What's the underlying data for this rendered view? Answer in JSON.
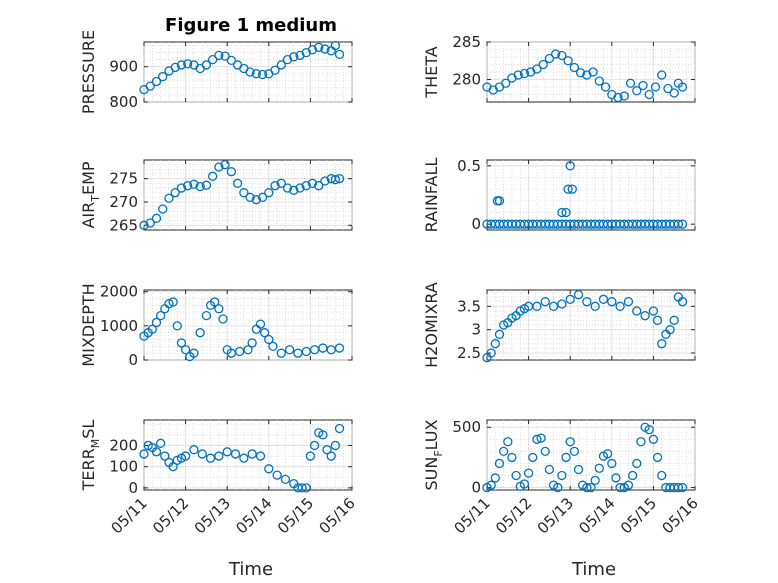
{
  "title": "Figure 1 medium",
  "xlabel": "Time",
  "marker_color": "#0072bd",
  "x_tick_labels": [
    "05/11",
    "05/12",
    "05/13",
    "05/14",
    "05/15",
    "05/16"
  ],
  "chart_data": [
    {
      "type": "scatter",
      "ylabel": "PRESSURE",
      "xlim": [
        0,
        5
      ],
      "ylim": [
        800,
        970
      ],
      "yticks": [
        800,
        900
      ],
      "yminor": [
        820,
        840,
        860,
        880,
        920,
        940,
        960
      ],
      "x": [
        0,
        0.15,
        0.3,
        0.45,
        0.6,
        0.75,
        0.9,
        1.05,
        1.2,
        1.35,
        1.5,
        1.65,
        1.8,
        1.95,
        2.1,
        2.25,
        2.4,
        2.55,
        2.7,
        2.85,
        3.0,
        3.15,
        3.3,
        3.45,
        3.6,
        3.75,
        3.9,
        4.05,
        4.2,
        4.35,
        4.5,
        4.6,
        4.7
      ],
      "y": [
        835,
        845,
        858,
        872,
        888,
        898,
        905,
        908,
        905,
        895,
        905,
        920,
        932,
        930,
        918,
        905,
        895,
        885,
        880,
        878,
        880,
        890,
        905,
        920,
        928,
        932,
        940,
        948,
        955,
        950,
        945,
        960,
        935
      ]
    },
    {
      "type": "scatter",
      "ylabel": "THETA",
      "xlim": [
        0,
        5
      ],
      "ylim": [
        277,
        285
      ],
      "yticks": [
        280,
        285
      ],
      "yminor": [
        278,
        279,
        281,
        282,
        283,
        284
      ],
      "x": [
        0,
        0.15,
        0.3,
        0.45,
        0.6,
        0.75,
        0.9,
        1.05,
        1.2,
        1.35,
        1.5,
        1.65,
        1.8,
        1.95,
        2.1,
        2.25,
        2.4,
        2.55,
        2.7,
        2.85,
        3.0,
        3.15,
        3.3,
        3.45,
        3.6,
        3.75,
        3.9,
        4.05,
        4.2,
        4.35,
        4.5,
        4.6,
        4.7
      ],
      "y": [
        279,
        278.6,
        279,
        279.5,
        280.2,
        280.6,
        280.8,
        281,
        281.4,
        282,
        282.8,
        283.4,
        283.2,
        282.5,
        281.6,
        280.9,
        280.6,
        281,
        279.8,
        279,
        278,
        277.6,
        277.8,
        279.5,
        278.5,
        279.2,
        278,
        279,
        280.6,
        278.8,
        278.2,
        279.5,
        279
      ]
    },
    {
      "type": "scatter",
      "ylabel": "AIR_TEMP",
      "xlim": [
        0,
        5
      ],
      "ylim": [
        264,
        279
      ],
      "yticks": [
        265,
        270,
        275
      ],
      "yminor": [
        266,
        267,
        268,
        269,
        271,
        272,
        273,
        274,
        276,
        277,
        278
      ],
      "x": [
        0,
        0.15,
        0.3,
        0.45,
        0.6,
        0.75,
        0.9,
        1.05,
        1.2,
        1.35,
        1.5,
        1.65,
        1.8,
        1.95,
        2.1,
        2.25,
        2.4,
        2.55,
        2.7,
        2.85,
        3.0,
        3.15,
        3.3,
        3.45,
        3.6,
        3.75,
        3.9,
        4.05,
        4.2,
        4.35,
        4.5,
        4.6,
        4.7
      ],
      "y": [
        265,
        265.5,
        266.5,
        268.5,
        270.8,
        272,
        273,
        273.5,
        273.8,
        273.3,
        273.6,
        275.5,
        277.5,
        278,
        276.5,
        274,
        272,
        271,
        270.5,
        271,
        272,
        273.5,
        274,
        273,
        272.5,
        273,
        273.5,
        274,
        273.5,
        274.5,
        275,
        274.8,
        275
      ]
    },
    {
      "type": "scatter",
      "ylabel": "RAINFALL",
      "xlim": [
        0,
        5
      ],
      "ylim": [
        -0.05,
        0.55
      ],
      "yticks": [
        0,
        0.5
      ],
      "yminor": [
        0.1,
        0.2,
        0.3,
        0.4
      ],
      "x": [
        0,
        0.1,
        0.2,
        0.3,
        0.4,
        0.5,
        0.6,
        0.7,
        0.8,
        0.9,
        1.0,
        1.1,
        1.2,
        1.3,
        1.4,
        1.5,
        1.6,
        1.7,
        1.8,
        1.9,
        2.0,
        2.1,
        2.2,
        2.3,
        2.4,
        2.5,
        2.6,
        2.7,
        2.8,
        2.9,
        3.0,
        3.1,
        3.2,
        3.3,
        3.4,
        3.5,
        3.6,
        3.7,
        3.8,
        3.9,
        4.0,
        4.1,
        4.2,
        4.3,
        4.4,
        4.5,
        4.6,
        4.7,
        0.25,
        0.3,
        1.8,
        1.9,
        1.95,
        2.0,
        2.05
      ],
      "y": [
        0,
        0,
        0,
        0,
        0,
        0,
        0,
        0,
        0,
        0,
        0,
        0,
        0,
        0,
        0,
        0,
        0,
        0,
        0,
        0,
        0,
        0,
        0,
        0,
        0,
        0,
        0,
        0,
        0,
        0,
        0,
        0,
        0,
        0,
        0,
        0,
        0,
        0,
        0,
        0,
        0,
        0,
        0,
        0,
        0,
        0,
        0,
        0,
        0.2,
        0.2,
        0.1,
        0.1,
        0.3,
        0.5,
        0.3
      ]
    },
    {
      "type": "scatter",
      "ylabel": "MIXDEPTH",
      "xlim": [
        0,
        5
      ],
      "ylim": [
        0,
        2050
      ],
      "yticks": [
        0,
        1000,
        2000
      ],
      "yminor": [
        200,
        400,
        600,
        800,
        1200,
        1400,
        1600,
        1800
      ],
      "x": [
        0,
        0.1,
        0.2,
        0.3,
        0.4,
        0.5,
        0.6,
        0.7,
        0.8,
        0.9,
        1.0,
        1.1,
        1.2,
        1.35,
        1.5,
        1.6,
        1.7,
        1.8,
        1.9,
        2.0,
        2.1,
        2.3,
        2.5,
        2.6,
        2.7,
        2.8,
        2.9,
        3.0,
        3.1,
        3.3,
        3.5,
        3.7,
        3.9,
        4.1,
        4.3,
        4.5,
        4.7
      ],
      "y": [
        700,
        800,
        900,
        1100,
        1300,
        1500,
        1650,
        1700,
        1000,
        500,
        300,
        100,
        200,
        800,
        1300,
        1600,
        1700,
        1500,
        1200,
        300,
        200,
        250,
        300,
        500,
        900,
        1050,
        800,
        600,
        400,
        200,
        300,
        200,
        250,
        300,
        350,
        300,
        350
      ]
    },
    {
      "type": "scatter",
      "ylabel": "H2OMIXRA",
      "xlim": [
        0,
        5
      ],
      "ylim": [
        2.35,
        3.85
      ],
      "yticks": [
        2.5,
        3,
        3.5
      ],
      "yminor": [
        2.6,
        2.7,
        2.8,
        2.9,
        3.1,
        3.2,
        3.3,
        3.4,
        3.6,
        3.7,
        3.8
      ],
      "x": [
        0,
        0.1,
        0.2,
        0.3,
        0.4,
        0.5,
        0.6,
        0.7,
        0.8,
        0.9,
        1.0,
        1.2,
        1.4,
        1.6,
        1.8,
        2.0,
        2.2,
        2.4,
        2.6,
        2.8,
        3.0,
        3.2,
        3.4,
        3.6,
        3.8,
        4.0,
        4.1,
        4.2,
        4.3,
        4.4,
        4.5,
        4.6,
        4.7
      ],
      "y": [
        2.4,
        2.5,
        2.7,
        2.9,
        3.1,
        3.15,
        3.25,
        3.3,
        3.4,
        3.45,
        3.5,
        3.5,
        3.6,
        3.5,
        3.55,
        3.65,
        3.75,
        3.6,
        3.5,
        3.65,
        3.6,
        3.5,
        3.6,
        3.4,
        3.3,
        3.4,
        3.2,
        2.7,
        2.9,
        3.0,
        3.2,
        3.7,
        3.6
      ]
    },
    {
      "type": "scatter",
      "ylabel": "TERR_MSL",
      "xlim": [
        0,
        5
      ],
      "ylim": [
        -10,
        320
      ],
      "yticks": [
        0,
        100,
        200
      ],
      "yminor": [
        50,
        150,
        250,
        300
      ],
      "x": [
        0,
        0.1,
        0.2,
        0.3,
        0.4,
        0.5,
        0.6,
        0.7,
        0.8,
        0.9,
        1.0,
        1.2,
        1.4,
        1.6,
        1.8,
        2.0,
        2.2,
        2.4,
        2.6,
        2.8,
        3.0,
        3.2,
        3.4,
        3.6,
        3.7,
        3.8,
        3.9,
        4.0,
        4.1,
        4.2,
        4.3,
        4.4,
        4.5,
        4.6,
        4.7
      ],
      "y": [
        160,
        200,
        190,
        170,
        210,
        150,
        120,
        100,
        130,
        140,
        150,
        180,
        160,
        140,
        150,
        170,
        160,
        140,
        160,
        150,
        90,
        60,
        40,
        20,
        0,
        0,
        0,
        150,
        200,
        260,
        250,
        180,
        150,
        200,
        280
      ]
    },
    {
      "type": "scatter",
      "ylabel": "SUN_FLUX",
      "xlim": [
        0,
        5
      ],
      "ylim": [
        -20,
        560
      ],
      "yticks": [
        0,
        500
      ],
      "yminor": [
        100,
        200,
        300,
        400
      ],
      "x": [
        0,
        0.1,
        0.2,
        0.3,
        0.4,
        0.5,
        0.6,
        0.7,
        0.8,
        0.9,
        1.0,
        1.1,
        1.2,
        1.3,
        1.4,
        1.5,
        1.6,
        1.7,
        1.8,
        1.9,
        2.0,
        2.1,
        2.2,
        2.3,
        2.4,
        2.5,
        2.6,
        2.7,
        2.8,
        2.9,
        3.0,
        3.1,
        3.2,
        3.3,
        3.4,
        3.5,
        3.6,
        3.7,
        3.8,
        3.9,
        4.0,
        4.1,
        4.2,
        4.3,
        4.4,
        4.5,
        4.6,
        4.7
      ],
      "y": [
        0,
        20,
        80,
        200,
        300,
        380,
        250,
        100,
        10,
        30,
        120,
        250,
        400,
        410,
        300,
        150,
        20,
        0,
        100,
        250,
        380,
        300,
        150,
        20,
        0,
        0,
        60,
        160,
        260,
        280,
        200,
        80,
        0,
        0,
        20,
        100,
        200,
        380,
        500,
        480,
        400,
        250,
        100,
        0,
        0,
        0,
        0,
        0
      ]
    }
  ]
}
